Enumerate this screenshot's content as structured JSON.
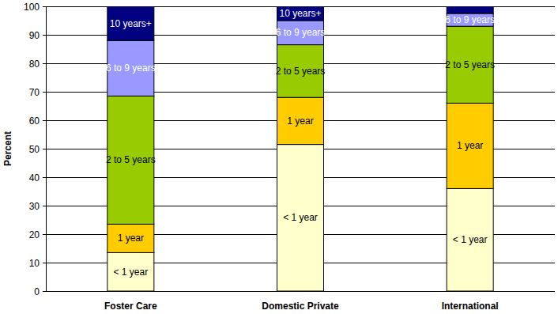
{
  "chart_data": {
    "type": "bar",
    "stacked": true,
    "grid": true,
    "y_label": "Percent",
    "categories": [
      "Foster Care",
      "Domestic Private",
      "International"
    ],
    "series": [
      {
        "name": "< 1 year",
        "color": "#ffffcc",
        "values": [
          13.5,
          51.5,
          36
        ]
      },
      {
        "name": "1 year",
        "color": "#ffcc00",
        "values": [
          10,
          16.5,
          30
        ]
      },
      {
        "name": "2 to 5 years",
        "color": "#99cc00",
        "values": [
          45,
          18.5,
          27
        ]
      },
      {
        "name": "6 to 9 years",
        "color": "#9999ff",
        "values": [
          19.5,
          8.5,
          4.5
        ]
      },
      {
        "name": "10 years+",
        "color": "#000080",
        "values": [
          12,
          5,
          2.5
        ]
      }
    ],
    "ylim": [
      0,
      100
    ],
    "yticks": [
      0,
      10,
      20,
      30,
      40,
      50,
      60,
      70,
      80,
      90,
      100
    ]
  }
}
